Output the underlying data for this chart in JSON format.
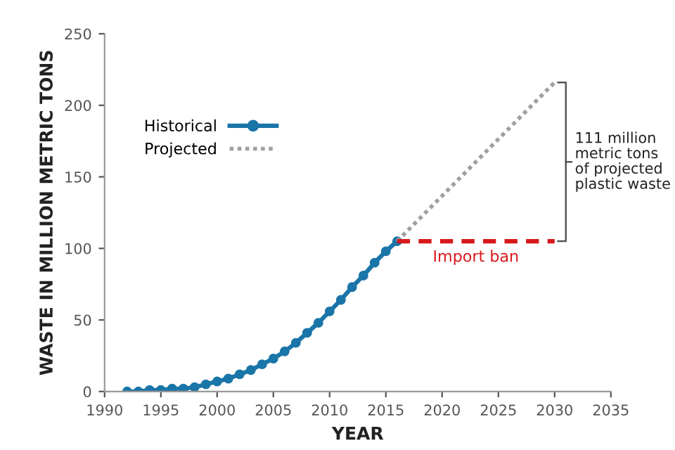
{
  "chart_data": {
    "type": "line",
    "xlabel": "YEAR",
    "ylabel": "WASTE IN MILLION METRIC TONS",
    "series": [
      {
        "name": "Historical",
        "color": "#1a75a8",
        "marker": "circle",
        "line_style": "solid",
        "x": [
          1992,
          1993,
          1994,
          1995,
          1996,
          1997,
          1998,
          1999,
          2000,
          2001,
          2002,
          2003,
          2004,
          2005,
          2006,
          2007,
          2008,
          2009,
          2010,
          2011,
          2012,
          2013,
          2014,
          2015,
          2016
        ],
        "values": [
          0,
          0,
          1,
          1,
          2,
          2,
          3,
          5,
          7,
          9,
          12,
          15,
          19,
          23,
          28,
          34,
          41,
          48,
          56,
          64,
          73,
          81,
          90,
          98,
          105
        ]
      },
      {
        "name": "Projected",
        "color": "#a0a0a0",
        "marker": "none",
        "line_style": "dotted",
        "x": [
          2016,
          2030
        ],
        "values": [
          105,
          216
        ]
      },
      {
        "name": "Import ban",
        "color": "#d7191c",
        "marker": "none",
        "line_style": "dashed",
        "x": [
          2016,
          2030
        ],
        "values": [
          105,
          105
        ]
      }
    ],
    "annotations": [
      "111 million metric tons of projected plastic waste"
    ],
    "xlim": [
      1990,
      2035
    ],
    "ylim": [
      0,
      250
    ],
    "xticks": [
      1990,
      1995,
      2000,
      2005,
      2010,
      2015,
      2020,
      2025,
      2030,
      2035
    ],
    "yticks": [
      0,
      50,
      100,
      150,
      200,
      250
    ],
    "grid": false,
    "legend": "top left"
  }
}
